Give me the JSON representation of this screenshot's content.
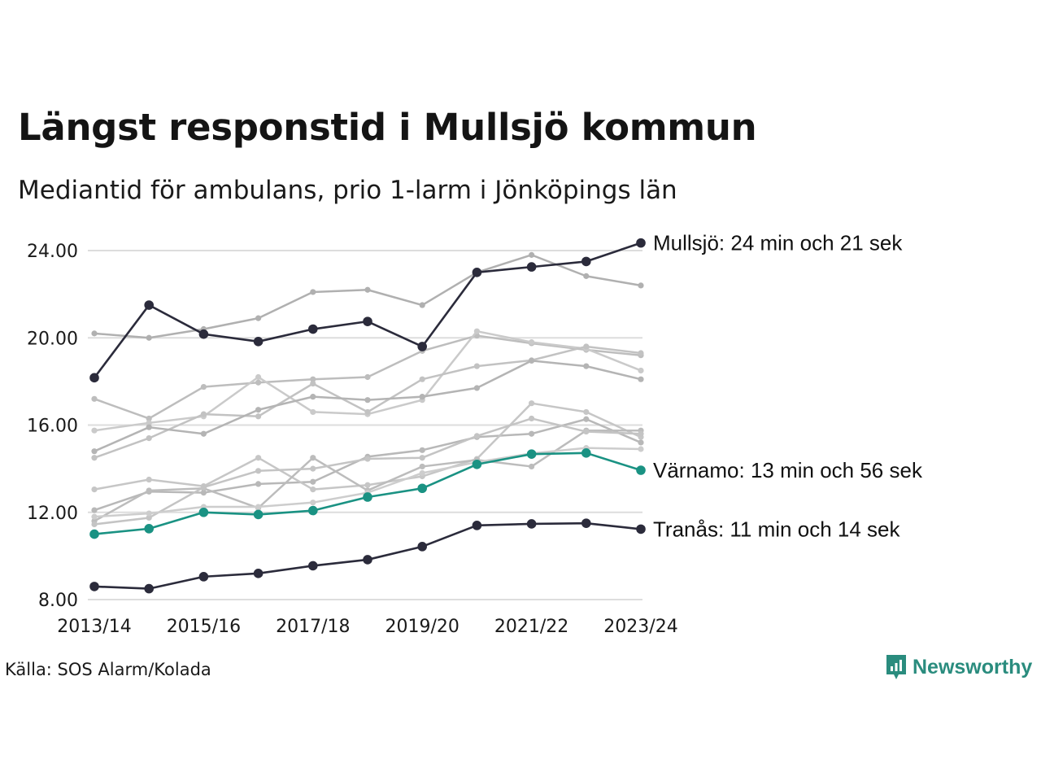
{
  "title": "Längst responstid i Mullsjö kommun",
  "subtitle": "Mediantid för ambulans, prio 1-larm i Jönköpings län",
  "source": "Källa: SOS Alarm/Kolada",
  "brand": {
    "name": "Newsworthy",
    "icon": "newsworthy-logo-icon",
    "color": "#2a8c7e"
  },
  "colors": {
    "highlight_dark": "#2b2b3b",
    "highlight_teal": "#1a9283",
    "context": "#b8b8b8",
    "grid": "#dddddd"
  },
  "chart_data": {
    "type": "line",
    "x": [
      "2013/14",
      "2014/15",
      "2015/16",
      "2016/17",
      "2017/18",
      "2018/19",
      "2019/20",
      "2020/21",
      "2021/22",
      "2022/23",
      "2023/24"
    ],
    "x_tick_labels": [
      "2013/14",
      "2015/16",
      "2017/18",
      "2019/20",
      "2021/22",
      "2023/24"
    ],
    "ylim": [
      8,
      24.5
    ],
    "y_ticks": [
      8,
      12,
      16,
      20,
      24
    ],
    "y_tick_labels": [
      "8.00",
      "12.00",
      "16.00",
      "20.00",
      "24.00"
    ],
    "grid": "horizontal",
    "highlighted": [
      {
        "name": "Mullsjö",
        "label": "Mullsjö: 24 min och 21 sek",
        "color": "#2b2b3b",
        "values": [
          18.17,
          21.5,
          20.17,
          19.83,
          20.4,
          20.75,
          19.6,
          23.0,
          23.25,
          23.5,
          24.35
        ]
      },
      {
        "name": "Värnamo",
        "label": "Värnamo: 13 min och 56 sek",
        "color": "#1a9283",
        "values": [
          11.0,
          11.25,
          12.0,
          11.9,
          12.08,
          12.7,
          13.1,
          14.2,
          14.67,
          14.72,
          13.93
        ]
      },
      {
        "name": "Tranås",
        "label": "Tranås: 11 min och 14 sek",
        "color": "#2b2b3b",
        "values": [
          8.6,
          8.5,
          9.05,
          9.2,
          9.55,
          9.83,
          10.43,
          11.4,
          11.47,
          11.5,
          11.23
        ]
      }
    ],
    "context_series": [
      {
        "values": [
          20.2,
          20.0,
          20.4,
          20.9,
          22.1,
          22.2,
          21.5,
          23.0,
          23.8,
          22.83,
          22.4
        ]
      },
      {
        "values": [
          17.2,
          16.3,
          17.75,
          17.95,
          18.1,
          18.2,
          19.4,
          20.1,
          19.75,
          19.45,
          19.2
        ]
      },
      {
        "values": [
          15.75,
          16.1,
          16.4,
          18.2,
          16.6,
          16.5,
          17.15,
          20.3,
          19.8,
          19.5,
          18.5
        ]
      },
      {
        "values": [
          14.5,
          15.4,
          16.5,
          16.4,
          17.9,
          16.6,
          18.1,
          18.7,
          18.97,
          19.6,
          19.3
        ]
      },
      {
        "values": [
          14.8,
          15.9,
          15.6,
          16.7,
          17.3,
          17.15,
          17.3,
          17.7,
          18.95,
          18.7,
          18.1
        ]
      },
      {
        "values": [
          12.1,
          12.95,
          12.9,
          13.3,
          13.4,
          14.55,
          14.85,
          15.45,
          15.6,
          16.27,
          15.2
        ]
      },
      {
        "values": [
          13.05,
          13.5,
          13.2,
          14.5,
          13.05,
          13.25,
          13.65,
          14.45,
          17.0,
          16.6,
          15.45
        ]
      },
      {
        "values": [
          11.6,
          13.0,
          13.1,
          12.2,
          14.5,
          13.0,
          14.1,
          14.4,
          14.1,
          15.75,
          15.75
        ]
      },
      {
        "values": [
          11.45,
          11.75,
          13.15,
          13.9,
          14.0,
          14.45,
          14.5,
          15.5,
          16.3,
          15.7,
          15.6
        ]
      },
      {
        "values": [
          11.8,
          11.95,
          12.25,
          12.25,
          12.45,
          12.9,
          13.8,
          14.3,
          14.7,
          14.95,
          14.9
        ]
      }
    ]
  }
}
